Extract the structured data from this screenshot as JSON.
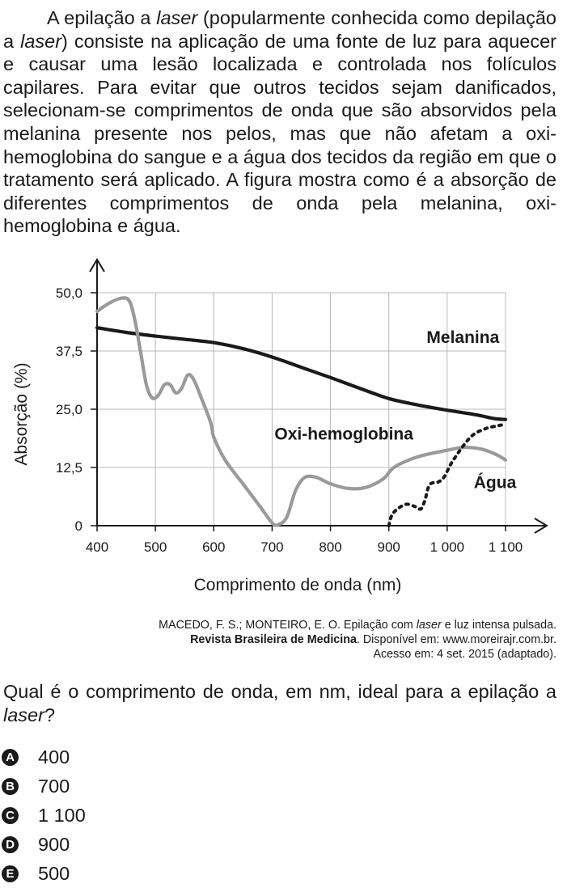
{
  "intro": {
    "p1": "A epilação a ",
    "p1_em": "laser",
    "p2": " (popularmente conhecida como depilação a ",
    "p2_em": "laser",
    "p3": ") consiste na aplicação de uma fonte de luz para aquecer e causar uma lesão localizada e controlada nos folículos capilares. Para evitar que outros tecidos sejam danificados, selecionam-se comprimentos de onda que são absorvidos pela melanina presente nos pelos, mas que não afetam a oxi-hemoglobina do sangue e a água dos tecidos da região em que o tratamento será aplicado. A figura mostra como é a absorção de diferentes comprimentos de onda pela melanina, oxi-hemoglobina e água."
  },
  "chart_data": {
    "type": "line",
    "xlabel": "Comprimento de onda (nm)",
    "ylabel": "Absorção (%)",
    "x_ticks": [
      400,
      500,
      600,
      700,
      800,
      900,
      1000,
      1100
    ],
    "x_tick_labels": [
      "400",
      "500",
      "600",
      "700",
      "800",
      "900",
      "1 000",
      "1 100"
    ],
    "y_ticks": [
      0,
      12.5,
      25,
      37.5,
      50
    ],
    "y_tick_labels": [
      "0",
      "12,5",
      "25,0",
      "37,5",
      "50,0"
    ],
    "xlim": [
      400,
      1100
    ],
    "ylim": [
      0,
      50
    ],
    "grid": true,
    "series": [
      {
        "name": "Melanina",
        "style": "solid",
        "color": "#1a1a1a",
        "points": [
          [
            400,
            42.5
          ],
          [
            450,
            41.5
          ],
          [
            500,
            40.7
          ],
          [
            550,
            40.0
          ],
          [
            600,
            39.3
          ],
          [
            650,
            38.0
          ],
          [
            700,
            36.2
          ],
          [
            750,
            34.0
          ],
          [
            800,
            31.8
          ],
          [
            850,
            29.5
          ],
          [
            900,
            27.3
          ],
          [
            950,
            25.9
          ],
          [
            1000,
            24.8
          ],
          [
            1050,
            23.8
          ],
          [
            1080,
            23.0
          ],
          [
            1100,
            22.8
          ]
        ]
      },
      {
        "name": "Oxi-hemoglobina",
        "style": "solid",
        "color": "#9a9a9a",
        "points": [
          [
            400,
            46
          ],
          [
            420,
            47.7
          ],
          [
            440,
            48.8
          ],
          [
            455,
            48.3
          ],
          [
            465,
            44
          ],
          [
            475,
            37
          ],
          [
            485,
            30
          ],
          [
            495,
            27.4
          ],
          [
            505,
            28
          ],
          [
            515,
            30.2
          ],
          [
            525,
            30.3
          ],
          [
            535,
            28.5
          ],
          [
            545,
            29.5
          ],
          [
            555,
            32.3
          ],
          [
            565,
            31.5
          ],
          [
            580,
            27
          ],
          [
            595,
            22
          ],
          [
            600,
            19
          ],
          [
            620,
            14
          ],
          [
            650,
            9
          ],
          [
            680,
            4
          ],
          [
            700,
            0.6
          ],
          [
            710,
            0.2
          ],
          [
            725,
            1.8
          ],
          [
            740,
            7.5
          ],
          [
            755,
            10.3
          ],
          [
            775,
            10.4
          ],
          [
            800,
            9
          ],
          [
            830,
            8
          ],
          [
            860,
            8.2
          ],
          [
            890,
            10
          ],
          [
            910,
            12.6
          ],
          [
            950,
            14.8
          ],
          [
            1000,
            16.2
          ],
          [
            1030,
            16.8
          ],
          [
            1060,
            16.4
          ],
          [
            1085,
            15.2
          ],
          [
            1100,
            14.1
          ]
        ]
      },
      {
        "name": "Água",
        "style": "dotted",
        "color": "#1a1a1a",
        "points": [
          [
            900,
            0
          ],
          [
            905,
            2.2
          ],
          [
            915,
            3.6
          ],
          [
            930,
            4.6
          ],
          [
            945,
            4.1
          ],
          [
            955,
            3.6
          ],
          [
            962,
            5.5
          ],
          [
            970,
            8.8
          ],
          [
            985,
            9.4
          ],
          [
            995,
            10.5
          ],
          [
            1010,
            14
          ],
          [
            1040,
            19
          ],
          [
            1065,
            20.8
          ],
          [
            1085,
            21.4
          ],
          [
            1100,
            21.8
          ]
        ]
      }
    ],
    "annotations": [
      {
        "text": "Melanina",
        "x": 1027,
        "y": 39.2
      },
      {
        "text": "Oxi-hemoglobina",
        "x": 823,
        "y": 18.5
      },
      {
        "text": "Água",
        "x": 1082,
        "y": 8.1
      }
    ]
  },
  "source": {
    "line1_a": "MACEDO, F. S.; MONTEIRO, E. O. Epilação com ",
    "line1_em": "laser",
    "line1_b": " e luz intensa pulsada.",
    "line2_bold": "Revista Brasileira de Medicina",
    "line2_rest": ". Disponível em: www.moreirajr.com.br.",
    "line3": "Acesso em: 4 set. 2015 (adaptado)."
  },
  "question": {
    "text": "Qual é o comprimento de onda, em nm, ideal para a epilação a ",
    "em": "laser",
    "end": "?"
  },
  "options": [
    {
      "letter": "A",
      "text": "400"
    },
    {
      "letter": "B",
      "text": "700"
    },
    {
      "letter": "C",
      "text": "1 100"
    },
    {
      "letter": "D",
      "text": "900"
    },
    {
      "letter": "E",
      "text": "500"
    }
  ]
}
